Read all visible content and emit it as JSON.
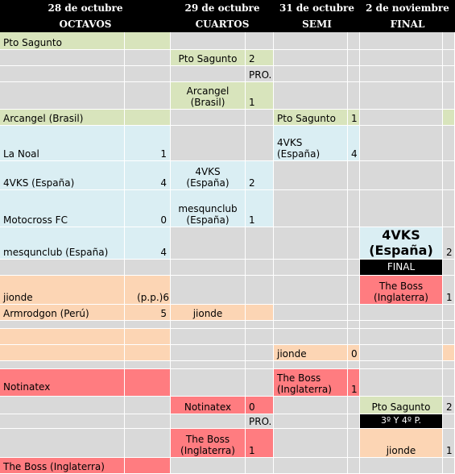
{
  "rounds": [
    {
      "date": "28 de octubre",
      "name": "OCTAVOS"
    },
    {
      "date": "29 de octubre",
      "name": "CUARTOS"
    },
    {
      "date": "31 de octubre",
      "name": "SEMI"
    },
    {
      "date": "2 de noviembre",
      "name": "FINAL"
    }
  ],
  "octavos": [
    {
      "team": "Pto Sagunto"
    },
    {
      "team": "Arcangel (Brasil)"
    },
    {
      "team": "La Noal",
      "score": 1
    },
    {
      "team": "4VKS (España)",
      "score": 4
    },
    {
      "team": "Motocross FC",
      "score": 0
    },
    {
      "team": "mesqunclub (España)",
      "score": 4
    },
    {
      "team": "jionde",
      "score": "(p.p.)6"
    },
    {
      "team": "Armrodgon (Perú)",
      "score": 5
    },
    {
      "team": "Notinatex"
    },
    {
      "team": "The Boss (Inglaterra)"
    }
  ],
  "cuartos": [
    {
      "team": "Pto Sagunto",
      "score": 2
    },
    {
      "team": "Arcangel (Brasil)",
      "score": 1
    },
    {
      "team": "4VKS (España)",
      "score": 2
    },
    {
      "team": "mesqunclub (España)",
      "score": 1
    },
    {
      "team": "jionde"
    },
    {
      "team": "Notinatex",
      "score": 0
    },
    {
      "team": "The Boss (Inglaterra)",
      "score": 1
    }
  ],
  "cuartos_notes": [
    "PRO.",
    "PRO."
  ],
  "semi": [
    {
      "team": "Pto Sagunto",
      "score": 1
    },
    {
      "team": "4VKS (España)",
      "score": 4
    },
    {
      "team": "jionde",
      "score": 0
    },
    {
      "team": "The Boss (Inglaterra)",
      "score": 1
    }
  ],
  "final": {
    "label": "FINAL",
    "teams": [
      {
        "team": "4VKS (España)",
        "score": 2
      },
      {
        "team": "The Boss (Inglaterra)",
        "score": 1
      }
    ]
  },
  "third_place": {
    "label": "3º Y 4º P.",
    "teams": [
      {
        "team": "Pto Sagunto",
        "score": 2
      },
      {
        "team": "jionde",
        "score": 1
      }
    ]
  }
}
